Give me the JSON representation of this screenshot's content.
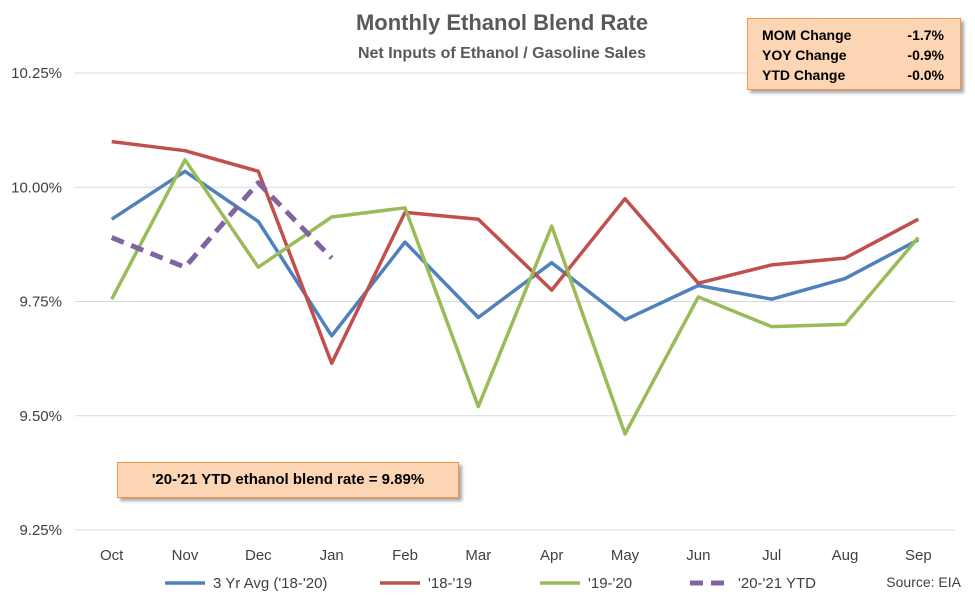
{
  "chart_data": {
    "type": "line",
    "title": "Monthly Ethanol Blend Rate",
    "subtitle": "Net Inputs of Ethanol / Gasoline Sales",
    "categories": [
      "Oct",
      "Nov",
      "Dec",
      "Jan",
      "Feb",
      "Mar",
      "Apr",
      "May",
      "Jun",
      "Jul",
      "Aug",
      "Sep"
    ],
    "ylim": [
      9.25,
      10.25
    ],
    "yticks": [
      9.25,
      9.5,
      9.75,
      10.0,
      10.25
    ],
    "ytick_labels": [
      "9.25%",
      "9.50%",
      "9.75%",
      "10.00%",
      "10.25%"
    ],
    "grid": true,
    "legend_position": "bottom",
    "series": [
      {
        "name": "3 Yr Avg ('18-'20)",
        "color": "#4f81bd",
        "dashed": false,
        "values": [
          9.93,
          10.035,
          9.925,
          9.675,
          9.88,
          9.715,
          9.835,
          9.71,
          9.785,
          9.755,
          9.8,
          9.885
        ]
      },
      {
        "name": "'18-'19",
        "color": "#c0504d",
        "dashed": false,
        "values": [
          10.1,
          10.08,
          10.035,
          9.615,
          9.945,
          9.93,
          9.775,
          9.975,
          9.79,
          9.83,
          9.845,
          9.93
        ]
      },
      {
        "name": "'19-'20",
        "color": "#9bbb59",
        "dashed": false,
        "values": [
          9.755,
          10.06,
          9.825,
          9.935,
          9.955,
          9.52,
          9.915,
          9.46,
          9.76,
          9.695,
          9.7,
          9.89
        ]
      },
      {
        "name": "'20-'21 YTD",
        "color": "#8064a2",
        "dashed": true,
        "values": [
          9.89,
          9.825,
          10.01,
          9.845,
          null,
          null,
          null,
          null,
          null,
          null,
          null,
          null
        ]
      }
    ]
  },
  "change_box": {
    "rows": [
      {
        "label": "MOM Change",
        "value": "-1.7%"
      },
      {
        "label": "YOY Change",
        "value": "-0.9%"
      },
      {
        "label": "YTD Change",
        "value": "-0.0%"
      }
    ]
  },
  "ytd_note": "'20-'21 YTD ethanol blend rate = 9.89%",
  "source": "Source: EIA"
}
